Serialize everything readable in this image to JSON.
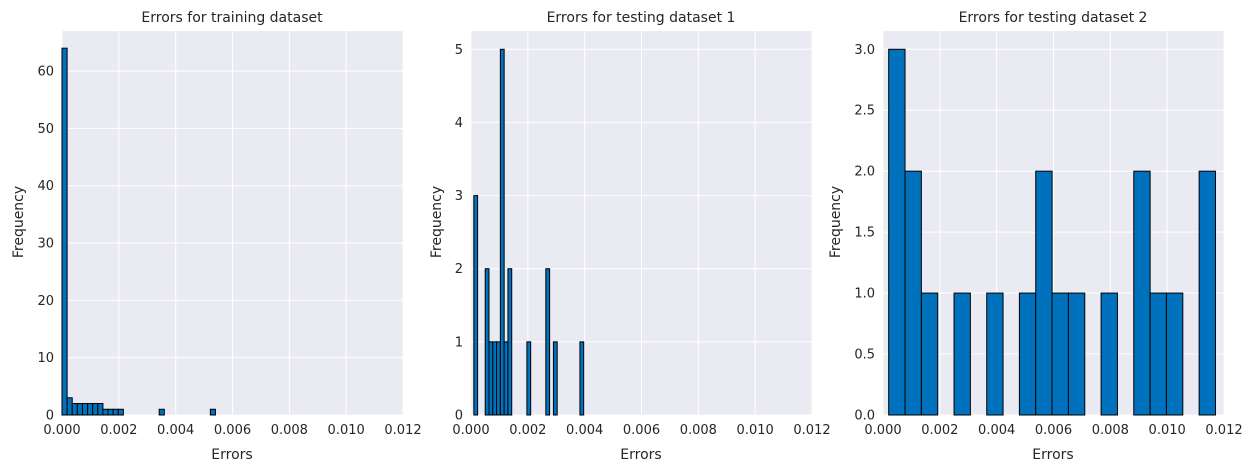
{
  "chart_data": [
    {
      "type": "bar",
      "subtype": "histogram",
      "title": "Errors for training dataset",
      "xlabel": "Errors",
      "ylabel": "Frequency",
      "xlim": [
        0,
        0.012
      ],
      "ylim": [
        0,
        67
      ],
      "xticks": [
        "0.000",
        "0.002",
        "0.004",
        "0.006",
        "0.008",
        "0.010",
        "0.012"
      ],
      "yticks": [
        "0",
        "10",
        "20",
        "30",
        "40",
        "50",
        "60"
      ],
      "bin_edges": [
        0.0,
        0.00018,
        0.00036,
        0.00054,
        0.00072,
        0.0009,
        0.00108,
        0.00126,
        0.00144,
        0.00162,
        0.0018,
        0.00198,
        0.00216,
        0.00234,
        0.00252,
        0.0027,
        0.00288,
        0.00306,
        0.00324,
        0.00342,
        0.0036,
        0.00378,
        0.00396,
        0.00414,
        0.00432,
        0.0045,
        0.00468,
        0.00486,
        0.00504,
        0.00522,
        0.0054
      ],
      "values": [
        64,
        3,
        2,
        2,
        2,
        2,
        2,
        2,
        1,
        1,
        1,
        1,
        0,
        0,
        0,
        0,
        0,
        0,
        0,
        1,
        0,
        0,
        0,
        0,
        0,
        0,
        0,
        0,
        0,
        1
      ],
      "grid": true
    },
    {
      "type": "bar",
      "subtype": "histogram",
      "title": "Errors for testing dataset 1",
      "xlabel": "Errors",
      "ylabel": "Frequency",
      "xlim": [
        0,
        0.012
      ],
      "ylim": [
        0,
        5.25
      ],
      "xticks": [
        "0.000",
        "0.002",
        "0.004",
        "0.006",
        "0.008",
        "0.010",
        "0.012"
      ],
      "yticks": [
        "0",
        "1",
        "2",
        "3",
        "4",
        "5"
      ],
      "bin_edges": [
        0.0001,
        0.000233,
        0.000367,
        0.0005,
        0.000633,
        0.000767,
        0.0009,
        0.001033,
        0.001167,
        0.0013,
        0.001433,
        0.001567,
        0.0017,
        0.001833,
        0.001967,
        0.0021,
        0.002233,
        0.002367,
        0.0025,
        0.002633,
        0.002767,
        0.0029,
        0.003033,
        0.003167,
        0.0033,
        0.003433,
        0.003567,
        0.0037,
        0.003833,
        0.003967,
        0.0041
      ],
      "values": [
        3,
        0,
        0,
        2,
        1,
        1,
        1,
        5,
        1,
        2,
        0,
        0,
        0,
        0,
        1,
        0,
        0,
        0,
        0,
        2,
        0,
        1,
        0,
        0,
        0,
        0,
        0,
        0,
        1,
        0
      ],
      "grid": true
    },
    {
      "type": "bar",
      "subtype": "histogram",
      "title": "Errors for testing dataset 2",
      "xlabel": "Errors",
      "ylabel": "Frequency",
      "xlim": [
        0,
        0.012
      ],
      "ylim": [
        0,
        3.15
      ],
      "xticks": [
        "0.000",
        "0.002",
        "0.004",
        "0.006",
        "0.008",
        "0.010",
        "0.012"
      ],
      "yticks": [
        "0.0",
        "0.5",
        "1.0",
        "1.5",
        "2.0",
        "2.5",
        "3.0"
      ],
      "bin_edges": [
        0.0002,
        0.000775,
        0.00135,
        0.001925,
        0.0025,
        0.003075,
        0.00365,
        0.004225,
        0.0048,
        0.005375,
        0.00595,
        0.006525,
        0.0071,
        0.007675,
        0.00825,
        0.008825,
        0.0094,
        0.009975,
        0.01055,
        0.011125,
        0.0117
      ],
      "values": [
        3,
        2,
        1,
        0,
        1,
        0,
        1,
        0,
        1,
        2,
        1,
        1,
        0,
        1,
        0,
        2,
        1,
        1,
        0,
        2
      ],
      "grid": true
    }
  ],
  "colors": {
    "bar_fill": "#0072bd",
    "bar_edge": "#000000",
    "axes_bg": "#eaeaf2",
    "grid": "#ffffff",
    "text": "#262626"
  }
}
